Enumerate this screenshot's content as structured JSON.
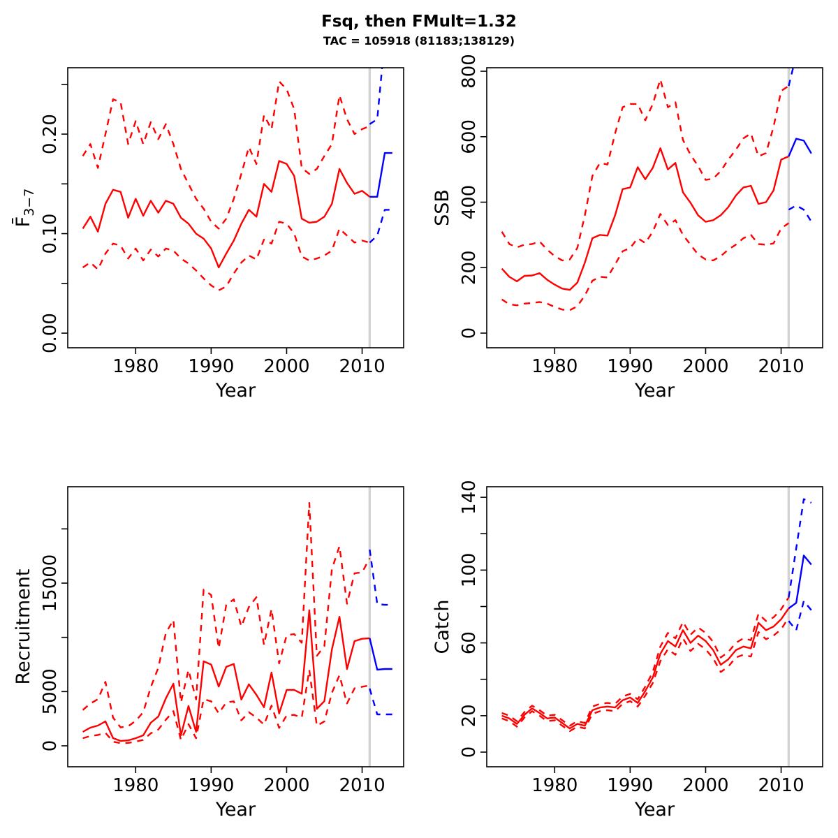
{
  "title": {
    "main": "Fsq, then FMult=1.32",
    "sub": "TAC = 105918 (81183;138129)"
  },
  "colors": {
    "history": "#ff0000",
    "projection": "#0000ff",
    "divider": "#d3d3d3",
    "axis": "#000000",
    "background": "#ffffff"
  },
  "chart_data": [
    {
      "id": "f",
      "type": "line",
      "ylabel_main": "F̄",
      "ylabel_sub": "3−7",
      "xlabel": "Year",
      "xlim": [
        1971,
        2015.5
      ],
      "ylim": [
        -0.0147,
        0.2667
      ],
      "x_tick_values": [
        1980,
        1990,
        2000,
        2010
      ],
      "x_tick_labels": [
        "1980",
        "1990",
        "2000",
        "2010"
      ],
      "y_tick_values": [
        0,
        0.1,
        0.2
      ],
      "y_tick_labels": [
        "0.00",
        "0.10",
        "0.20"
      ],
      "y_minor_ticks": [
        0.05,
        0.15,
        0.25
      ],
      "divider_x": 2011,
      "series": [
        {
          "name": "history-upper-ci",
          "color": "history",
          "dash": true,
          "x_start": 1973,
          "values": [
            0.178,
            0.19,
            0.166,
            0.2,
            0.235,
            0.232,
            0.19,
            0.213,
            0.19,
            0.212,
            0.195,
            0.21,
            0.19,
            0.165,
            0.15,
            0.135,
            0.125,
            0.112,
            0.105,
            0.115,
            0.135,
            0.16,
            0.187,
            0.17,
            0.219,
            0.205,
            0.253,
            0.245,
            0.225,
            0.166,
            0.16,
            0.165,
            0.178,
            0.19,
            0.239,
            0.215,
            0.2,
            0.205,
            0.208
          ]
        },
        {
          "name": "history-median",
          "color": "history",
          "dash": false,
          "x_start": 1973,
          "values": [
            0.105,
            0.117,
            0.102,
            0.13,
            0.144,
            0.142,
            0.116,
            0.135,
            0.118,
            0.133,
            0.121,
            0.133,
            0.13,
            0.116,
            0.11,
            0.1,
            0.095,
            0.085,
            0.066,
            0.08,
            0.093,
            0.11,
            0.124,
            0.117,
            0.15,
            0.142,
            0.173,
            0.17,
            0.158,
            0.115,
            0.111,
            0.112,
            0.117,
            0.13,
            0.165,
            0.151,
            0.14,
            0.143,
            0.137
          ]
        },
        {
          "name": "history-lower-ci",
          "color": "history",
          "dash": true,
          "x_start": 1973,
          "values": [
            0.066,
            0.071,
            0.064,
            0.08,
            0.09,
            0.088,
            0.075,
            0.085,
            0.073,
            0.084,
            0.077,
            0.085,
            0.083,
            0.075,
            0.07,
            0.063,
            0.055,
            0.048,
            0.043,
            0.047,
            0.06,
            0.071,
            0.078,
            0.074,
            0.094,
            0.09,
            0.112,
            0.11,
            0.1,
            0.077,
            0.073,
            0.075,
            0.078,
            0.083,
            0.105,
            0.098,
            0.091,
            0.093,
            0.091
          ]
        },
        {
          "name": "projection-upper-ci",
          "color": "projection",
          "dash": true,
          "x_start": 2011,
          "values": [
            0.21,
            0.215,
            0.295,
            0.305
          ]
        },
        {
          "name": "projection-median",
          "color": "projection",
          "dash": false,
          "x_start": 2011,
          "values": [
            0.137,
            0.137,
            0.181,
            0.181
          ]
        },
        {
          "name": "projection-lower-ci",
          "color": "projection",
          "dash": true,
          "x_start": 2011,
          "values": [
            0.091,
            0.098,
            0.124,
            0.124
          ]
        }
      ]
    },
    {
      "id": "ssb",
      "type": "line",
      "ylabel_main": "SSB",
      "ylabel_sub": "",
      "xlabel": "Year",
      "xlim": [
        1971,
        2015.5
      ],
      "ylim": [
        -44.8,
        810.7
      ],
      "x_tick_values": [
        1980,
        1990,
        2000,
        2010
      ],
      "x_tick_labels": [
        "1980",
        "1990",
        "2000",
        "2010"
      ],
      "y_tick_values": [
        0,
        200,
        400,
        600,
        800
      ],
      "y_tick_labels": [
        "0",
        "200",
        "400",
        "600",
        "800"
      ],
      "y_minor_ticks": [],
      "divider_x": 2011,
      "series": [
        {
          "name": "history-upper-ci",
          "color": "history",
          "dash": true,
          "x_start": 1973,
          "values": [
            310,
            272,
            262,
            270,
            272,
            280,
            255,
            235,
            222,
            225,
            260,
            360,
            480,
            520,
            515,
            610,
            690,
            700,
            700,
            650,
            700,
            775,
            690,
            705,
            590,
            545,
            510,
            468,
            472,
            495,
            530,
            560,
            595,
            610,
            540,
            550,
            630,
            740,
            755
          ]
        },
        {
          "name": "history-median",
          "color": "history",
          "dash": false,
          "x_start": 1973,
          "values": [
            197,
            172,
            158,
            175,
            176,
            183,
            163,
            148,
            136,
            132,
            154,
            215,
            290,
            300,
            298,
            360,
            440,
            445,
            507,
            470,
            505,
            565,
            500,
            520,
            430,
            398,
            360,
            340,
            345,
            360,
            385,
            420,
            445,
            450,
            395,
            400,
            436,
            530,
            540
          ]
        },
        {
          "name": "history-lower-ci",
          "color": "history",
          "dash": true,
          "x_start": 1973,
          "values": [
            103,
            88,
            85,
            90,
            92,
            95,
            90,
            80,
            72,
            70,
            82,
            115,
            160,
            172,
            170,
            210,
            250,
            260,
            290,
            275,
            310,
            364,
            330,
            345,
            300,
            270,
            240,
            225,
            222,
            235,
            255,
            270,
            290,
            300,
            272,
            270,
            274,
            320,
            336
          ]
        },
        {
          "name": "projection-upper-ci",
          "color": "projection",
          "dash": true,
          "x_start": 2011,
          "values": [
            755,
            850,
            905,
            885
          ]
        },
        {
          "name": "projection-median",
          "color": "projection",
          "dash": false,
          "x_start": 2011,
          "values": [
            540,
            594,
            588,
            549
          ]
        },
        {
          "name": "projection-lower-ci",
          "color": "projection",
          "dash": true,
          "x_start": 2011,
          "values": [
            377,
            390,
            377,
            341
          ]
        }
      ]
    },
    {
      "id": "recruitment",
      "type": "line",
      "ylabel_main": "Recruitment",
      "ylabel_sub": "",
      "xlabel": "Year",
      "xlim": [
        1971,
        2015.5
      ],
      "ylim": [
        -1931,
        23885
      ],
      "x_tick_values": [
        1980,
        1990,
        2000,
        2010
      ],
      "x_tick_labels": [
        "1980",
        "1990",
        "2000",
        "2010"
      ],
      "y_tick_values": [
        0,
        5000,
        15000
      ],
      "y_tick_labels": [
        "0",
        "5000",
        "15000"
      ],
      "y_minor_ticks": [
        10000,
        20000
      ],
      "divider_x": 2011,
      "series": [
        {
          "name": "history-upper-ci",
          "color": "history",
          "dash": true,
          "x_start": 1973,
          "values": [
            3300,
            3900,
            4300,
            5900,
            2600,
            1700,
            1800,
            2300,
            3100,
            5400,
            7200,
            10400,
            11600,
            4000,
            7000,
            4280,
            14400,
            13900,
            9000,
            13000,
            13500,
            11000,
            12800,
            13700,
            9300,
            12600,
            7600,
            10200,
            10300,
            9500,
            22400,
            8300,
            9200,
            16300,
            18400,
            13100,
            15900,
            16000,
            17300
          ]
        },
        {
          "name": "history-median",
          "color": "history",
          "dash": false,
          "x_start": 1973,
          "values": [
            1290,
            1675,
            1870,
            2255,
            710,
            450,
            500,
            700,
            965,
            2125,
            2700,
            4380,
            5730,
            965,
            3670,
            1290,
            7790,
            7485,
            5460,
            7280,
            7550,
            4270,
            5670,
            4700,
            3560,
            6760,
            2980,
            5150,
            5160,
            4800,
            12500,
            3410,
            4120,
            8890,
            11900,
            7080,
            9650,
            9870,
            9920
          ]
        },
        {
          "name": "history-lower-ci",
          "color": "history",
          "dash": true,
          "x_start": 1973,
          "values": [
            700,
            900,
            1000,
            1200,
            380,
            250,
            270,
            380,
            550,
            1150,
            1500,
            2400,
            3200,
            550,
            2000,
            700,
            4300,
            4100,
            3000,
            4000,
            4100,
            2350,
            3100,
            2600,
            1950,
            3700,
            1650,
            2800,
            2850,
            2600,
            7000,
            1850,
            2250,
            4900,
            6500,
            3900,
            5300,
            5450,
            5560
          ]
        },
        {
          "name": "projection-upper-ci",
          "color": "projection",
          "dash": true,
          "x_start": 2011,
          "values": [
            18100,
            13070,
            13000,
            13000
          ]
        },
        {
          "name": "projection-median",
          "color": "projection",
          "dash": false,
          "x_start": 2011,
          "values": [
            9920,
            7020,
            7080,
            7080
          ]
        },
        {
          "name": "projection-lower-ci",
          "color": "projection",
          "dash": true,
          "x_start": 2011,
          "values": [
            5280,
            2900,
            2900,
            2900
          ]
        }
      ]
    },
    {
      "id": "catch",
      "type": "line",
      "ylabel_main": "Catch",
      "ylabel_sub": "",
      "xlabel": "Year",
      "xlim": [
        1971,
        2015.5
      ],
      "ylim": [
        -8.06,
        145.8
      ],
      "x_tick_values": [
        1980,
        1990,
        2000,
        2010
      ],
      "x_tick_labels": [
        "1980",
        "1990",
        "2000",
        "2010"
      ],
      "y_tick_values": [
        0,
        20,
        60,
        100,
        140
      ],
      "y_tick_labels": [
        "0",
        "20",
        "60",
        "100",
        "140"
      ],
      "y_minor_ticks": [
        40,
        80,
        120
      ],
      "divider_x": 2011,
      "series": [
        {
          "name": "history-upper-ci",
          "color": "history",
          "dash": true,
          "x_start": 1973,
          "values": [
            21.5,
            20,
            17,
            22,
            25.5,
            23,
            20,
            20.5,
            17.5,
            14.5,
            17,
            16,
            25,
            26.5,
            27,
            26.5,
            30.5,
            32,
            29,
            36,
            44,
            58,
            65.5,
            62.5,
            71.5,
            64.5,
            68.5,
            65.5,
            60.5,
            52,
            55,
            60,
            62.5,
            61.5,
            76,
            72,
            74,
            78.5,
            85
          ]
        },
        {
          "name": "history-median",
          "color": "history",
          "dash": false,
          "x_start": 1973,
          "values": [
            20,
            18.5,
            15.5,
            20.5,
            24,
            21.5,
            18.5,
            19,
            16,
            13,
            15.5,
            14.5,
            23,
            24.5,
            25,
            24.5,
            28.5,
            30,
            27,
            33.5,
            41,
            54,
            61,
            58,
            67,
            60,
            64,
            61,
            56,
            48,
            51,
            56,
            58,
            57,
            71,
            67,
            69,
            73,
            79
          ]
        },
        {
          "name": "history-lower-ci",
          "color": "history",
          "dash": true,
          "x_start": 1973,
          "values": [
            18.5,
            17,
            14,
            19,
            22.5,
            20,
            17,
            17.5,
            14.5,
            11.5,
            14,
            13,
            21,
            22.5,
            23,
            22.5,
            26.5,
            28,
            25,
            31,
            38,
            50,
            56.5,
            53.5,
            62.5,
            55.5,
            59.5,
            56.5,
            51.5,
            44,
            47,
            52,
            53.5,
            52.5,
            66,
            62,
            64,
            67.5,
            74
          ]
        },
        {
          "name": "projection-upper-ci",
          "color": "projection",
          "dash": true,
          "x_start": 2011,
          "values": [
            85,
            112,
            139,
            137
          ]
        },
        {
          "name": "projection-median",
          "color": "projection",
          "dash": false,
          "x_start": 2011,
          "values": [
            79,
            82,
            108,
            103
          ]
        },
        {
          "name": "projection-lower-ci",
          "color": "projection",
          "dash": true,
          "x_start": 2011,
          "values": [
            72,
            67,
            83,
            78
          ]
        }
      ]
    }
  ]
}
